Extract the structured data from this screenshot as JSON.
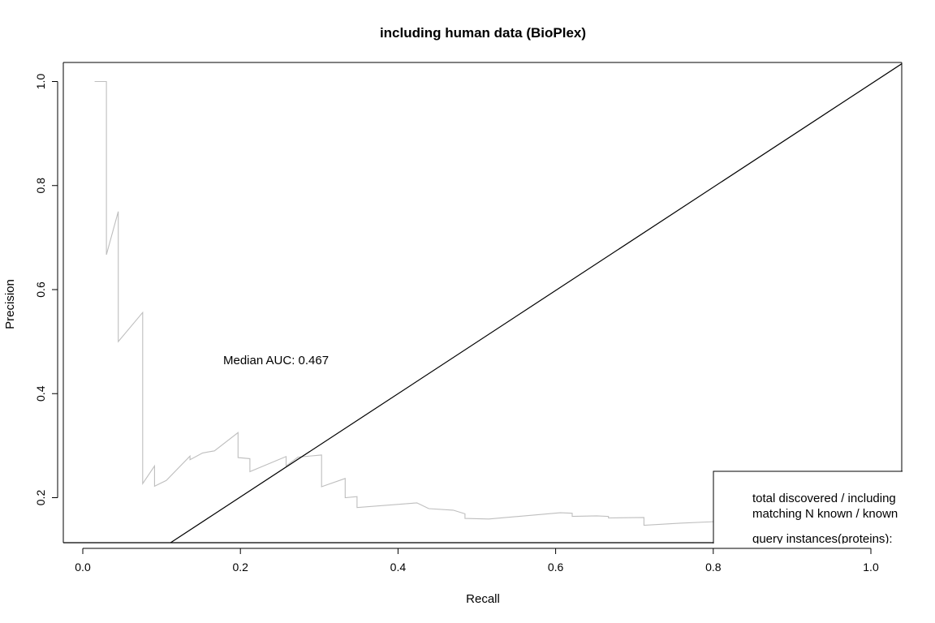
{
  "chart_data": {
    "type": "line",
    "title": "including human data (BioPlex)",
    "xlabel": "Recall",
    "ylabel": "Precision",
    "xlim": [
      -0.04,
      1.04
    ],
    "ylim": [
      0.112,
      1.035
    ],
    "xticks": [
      0.0,
      0.2,
      0.4,
      0.6,
      0.8,
      1.0
    ],
    "xtick_labels": [
      "0.0",
      "0.2",
      "0.4",
      "0.6",
      "0.8",
      "1.0"
    ],
    "yticks": [
      0.2,
      0.4,
      0.6,
      0.8,
      1.0
    ],
    "ytick_labels": [
      "0.2",
      "0.4",
      "0.6",
      "0.8",
      "1.0"
    ],
    "grid": false,
    "annotation": "Median AUC: 0.467",
    "series": [
      {
        "color": "#bebebe",
        "x": [
          0.015,
          0.03,
          0.03,
          0.045,
          0.045,
          0.076,
          0.076,
          0.091,
          0.091,
          0.106,
          0.136,
          0.136,
          0.152,
          0.167,
          0.197,
          0.197,
          0.212,
          0.212,
          0.258,
          0.258,
          0.273,
          0.303,
          0.303,
          0.333,
          0.333,
          0.348,
          0.348,
          0.424,
          0.439,
          0.47,
          0.485,
          0.485,
          0.515,
          0.606,
          0.621,
          0.621,
          0.652,
          0.667,
          0.667,
          0.712,
          0.712,
          0.758,
          0.803
        ],
        "y": [
          1.0,
          1.0,
          0.667,
          0.75,
          0.5,
          0.556,
          0.227,
          0.261,
          0.222,
          0.233,
          0.28,
          0.273,
          0.286,
          0.29,
          0.325,
          0.277,
          0.275,
          0.25,
          0.279,
          0.261,
          0.278,
          0.282,
          0.221,
          0.237,
          0.2,
          0.202,
          0.181,
          0.19,
          0.179,
          0.176,
          0.169,
          0.16,
          0.159,
          0.171,
          0.17,
          0.164,
          0.165,
          0.164,
          0.161,
          0.162,
          0.147,
          0.151,
          0.154
        ]
      },
      {
        "color": "#000000",
        "x": [
          0.11,
          1.04
        ],
        "y": [
          0.112,
          1.035
        ]
      }
    ],
    "legend": {
      "position": "bottom-right",
      "lines": [
        "total discovered / including",
        "matching N known / known",
        "query instances(proteins):"
      ]
    }
  }
}
